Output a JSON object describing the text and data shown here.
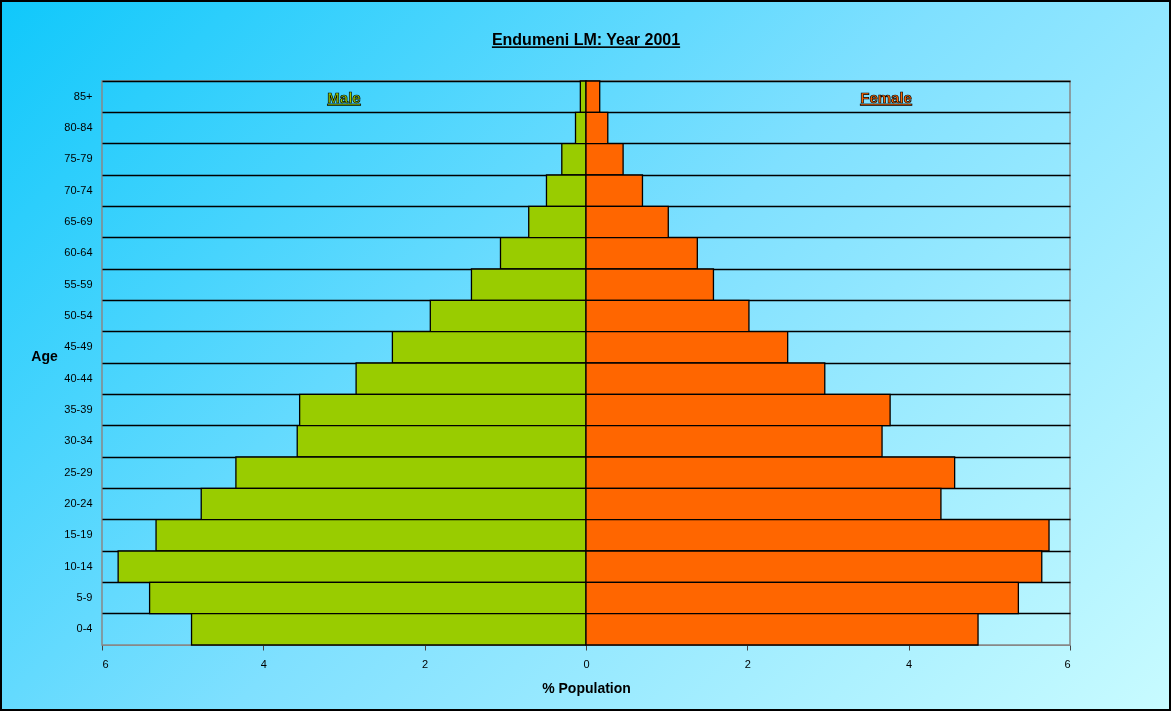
{
  "chart_data": {
    "type": "bar",
    "orientation": "horizontal",
    "stacked": true,
    "title": "Endumeni LM: Year 2001",
    "xlabel": "% Population",
    "ylabel": "Age",
    "categories": [
      "85+",
      "80-84",
      "75-79",
      "70-74",
      "65-69",
      "60-64",
      "55-59",
      "50-54",
      "45-49",
      "40-44",
      "35-39",
      "30-34",
      "25-29",
      "20-24",
      "15-19",
      "10-14",
      "5-9",
      "0-4"
    ],
    "series": [
      {
        "name": "Male",
        "color": "#99cc00",
        "values": [
          -0.07,
          -0.13,
          -0.3,
          -0.49,
          -0.71,
          -1.06,
          -1.42,
          -1.93,
          -2.4,
          -2.85,
          -3.55,
          -3.58,
          -4.34,
          -4.77,
          -5.33,
          -5.8,
          -5.41,
          -4.89
        ]
      },
      {
        "name": "Female",
        "color": "#ff6600",
        "values": [
          0.17,
          0.27,
          0.46,
          0.7,
          1.02,
          1.38,
          1.58,
          2.02,
          2.5,
          2.96,
          3.77,
          3.67,
          4.57,
          4.4,
          5.74,
          5.65,
          5.36,
          4.86
        ]
      }
    ],
    "xlim": [
      -6,
      6
    ],
    "xticks": [
      {
        "value": -6,
        "label": "6"
      },
      {
        "value": -4,
        "label": "4"
      },
      {
        "value": -2,
        "label": "2"
      },
      0,
      2,
      4,
      6
    ],
    "grid": "y"
  }
}
